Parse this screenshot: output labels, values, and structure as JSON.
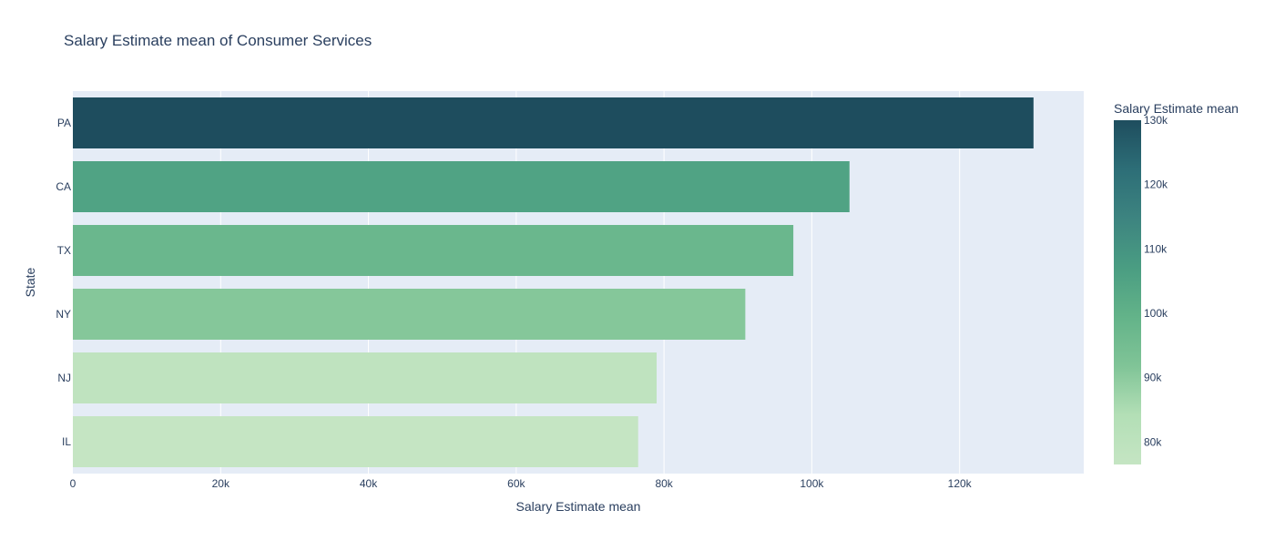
{
  "chart_data": {
    "type": "bar",
    "orientation": "horizontal",
    "title": "Salary Estimate mean of Consumer Services",
    "xlabel": "Salary Estimate mean",
    "ylabel": "State",
    "categories": [
      "PA",
      "CA",
      "TX",
      "NY",
      "NJ",
      "IL"
    ],
    "values": [
      130000,
      105100,
      97500,
      91000,
      79000,
      76500
    ],
    "xlim": [
      0,
      136800
    ],
    "x_ticks": [
      0,
      20000,
      40000,
      60000,
      80000,
      100000,
      120000
    ],
    "x_tick_labels": [
      "0",
      "20k",
      "40k",
      "60k",
      "80k",
      "100k",
      "120k"
    ],
    "grid": true,
    "legend": "none",
    "colorbar": {
      "title": "Salary Estimate mean",
      "range": [
        76500,
        130000
      ],
      "ticks": [
        80000,
        90000,
        100000,
        110000,
        120000,
        130000
      ],
      "tick_labels": [
        "80k",
        "90k",
        "100k",
        "110k",
        "120k",
        "130k"
      ],
      "colorscale": [
        "#c5e5c3",
        "#b3dfb6",
        "#80c497",
        "#63b389",
        "#4a9d82",
        "#3d8480",
        "#2d6e77",
        "#1e4d5e"
      ]
    },
    "colors": {
      "plot_bg": "#e5ecf6",
      "grid": "#ffffff",
      "text": "#2a3f5f"
    }
  }
}
